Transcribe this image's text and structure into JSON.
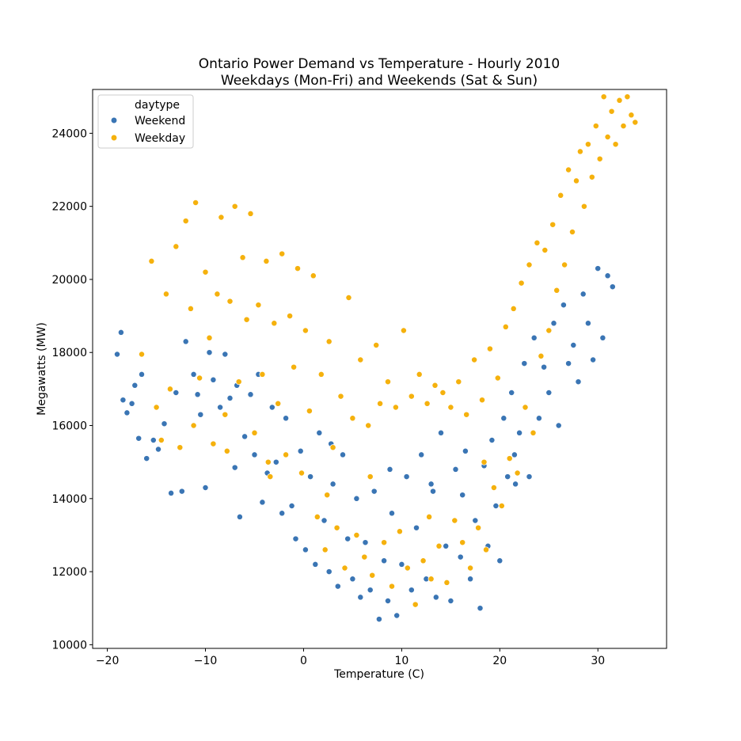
{
  "chart_data": {
    "type": "scatter",
    "title": "Ontario Power Demand vs Temperature - Hourly 2010",
    "subtitle": "Weekdays (Mon-Fri) and Weekends (Sat & Sun)",
    "xlabel": "Temperature (C)",
    "ylabel": "Megawatts (MW)",
    "xlim": [
      -21.5,
      37
    ],
    "ylim": [
      9900,
      25200
    ],
    "xticks": [
      -20,
      -10,
      0,
      10,
      20,
      30
    ],
    "yticks": [
      10000,
      12000,
      14000,
      16000,
      18000,
      20000,
      22000,
      24000
    ],
    "grid": false,
    "legend": {
      "title": "daytype",
      "placement": "top-left",
      "entries": [
        "Weekend",
        "Weekday"
      ]
    },
    "series": [
      {
        "name": "Weekend",
        "color": "#3a75b4",
        "points": [
          [
            -19,
            17950
          ],
          [
            -18.6,
            18550
          ],
          [
            -18.4,
            16700
          ],
          [
            -18,
            16350
          ],
          [
            -17.5,
            16600
          ],
          [
            -17.2,
            17100
          ],
          [
            -16.8,
            15650
          ],
          [
            -16.5,
            17400
          ],
          [
            -16,
            15100
          ],
          [
            -15.3,
            15600
          ],
          [
            -14.8,
            15350
          ],
          [
            -14.2,
            16050
          ],
          [
            -13.5,
            14150
          ],
          [
            -13,
            16900
          ],
          [
            -12.4,
            14200
          ],
          [
            -12,
            18300
          ],
          [
            -11.2,
            17400
          ],
          [
            -10.8,
            16850
          ],
          [
            -10.5,
            16300
          ],
          [
            -10,
            14300
          ],
          [
            -9.2,
            17250
          ],
          [
            -8.5,
            16500
          ],
          [
            -8,
            17950
          ],
          [
            -7.5,
            16750
          ],
          [
            -7,
            14850
          ],
          [
            -6.5,
            13500
          ],
          [
            -6,
            15700
          ],
          [
            -5.4,
            16850
          ],
          [
            -5,
            15200
          ],
          [
            -4.6,
            17400
          ],
          [
            -4.2,
            13900
          ],
          [
            -3.7,
            14700
          ],
          [
            -3.2,
            16500
          ],
          [
            -2.8,
            15000
          ],
          [
            -2.2,
            13600
          ],
          [
            -1.8,
            16200
          ],
          [
            -1.2,
            13800
          ],
          [
            -0.8,
            12900
          ],
          [
            -0.3,
            15300
          ],
          [
            0.2,
            12600
          ],
          [
            0.7,
            14600
          ],
          [
            1.2,
            12200
          ],
          [
            1.6,
            15800
          ],
          [
            2.1,
            13400
          ],
          [
            2.6,
            12000
          ],
          [
            3,
            14400
          ],
          [
            3.5,
            11600
          ],
          [
            4,
            15200
          ],
          [
            4.5,
            12900
          ],
          [
            5,
            11800
          ],
          [
            5.4,
            14000
          ],
          [
            5.8,
            11300
          ],
          [
            6.3,
            12800
          ],
          [
            6.8,
            11500
          ],
          [
            7.2,
            14200
          ],
          [
            7.7,
            10700
          ],
          [
            8.2,
            12300
          ],
          [
            8.6,
            11200
          ],
          [
            9,
            13600
          ],
          [
            9.5,
            10800
          ],
          [
            10,
            12200
          ],
          [
            10.5,
            14600
          ],
          [
            11,
            11500
          ],
          [
            11.5,
            13200
          ],
          [
            12,
            15200
          ],
          [
            12.5,
            11800
          ],
          [
            13,
            14400
          ],
          [
            13.5,
            11300
          ],
          [
            14,
            15800
          ],
          [
            14.5,
            12700
          ],
          [
            15,
            11200
          ],
          [
            15.5,
            14800
          ],
          [
            16,
            12400
          ],
          [
            16.5,
            15300
          ],
          [
            17,
            11800
          ],
          [
            17.5,
            13400
          ],
          [
            18,
            11000
          ],
          [
            18.4,
            14900
          ],
          [
            18.8,
            12700
          ],
          [
            19.2,
            15600
          ],
          [
            19.6,
            13800
          ],
          [
            20,
            12300
          ],
          [
            20.4,
            16200
          ],
          [
            20.8,
            14600
          ],
          [
            21.2,
            16900
          ],
          [
            21.6,
            14400
          ],
          [
            22,
            15800
          ],
          [
            22.5,
            17700
          ],
          [
            23,
            14600
          ],
          [
            23.5,
            18400
          ],
          [
            24,
            16200
          ],
          [
            24.5,
            17600
          ],
          [
            25,
            16900
          ],
          [
            25.5,
            18800
          ],
          [
            26,
            16000
          ],
          [
            26.5,
            19300
          ],
          [
            27,
            17700
          ],
          [
            27.5,
            18200
          ],
          [
            28,
            17200
          ],
          [
            28.5,
            19600
          ],
          [
            29,
            18800
          ],
          [
            29.5,
            17800
          ],
          [
            30,
            20300
          ],
          [
            30.5,
            18400
          ],
          [
            31,
            20100
          ],
          [
            31.5,
            19800
          ],
          [
            -9.6,
            18000
          ],
          [
            -6.8,
            17100
          ],
          [
            2.8,
            15500
          ],
          [
            8.8,
            14800
          ],
          [
            13.2,
            14200
          ],
          [
            16.2,
            14100
          ],
          [
            21.5,
            15200
          ]
        ]
      },
      {
        "name": "Weekday",
        "color": "#f5b10d",
        "points": [
          [
            -16.5,
            17950
          ],
          [
            -15.5,
            20500
          ],
          [
            -15,
            16500
          ],
          [
            -14.5,
            15600
          ],
          [
            -14,
            19600
          ],
          [
            -13.6,
            17000
          ],
          [
            -13,
            20900
          ],
          [
            -12.6,
            15400
          ],
          [
            -12,
            21600
          ],
          [
            -11.5,
            19200
          ],
          [
            -11.2,
            16000
          ],
          [
            -11,
            22100
          ],
          [
            -10.6,
            17300
          ],
          [
            -10,
            20200
          ],
          [
            -9.6,
            18400
          ],
          [
            -9.2,
            15500
          ],
          [
            -8.8,
            19600
          ],
          [
            -8.4,
            21700
          ],
          [
            -8,
            16300
          ],
          [
            -7.5,
            19400
          ],
          [
            -7,
            22000
          ],
          [
            -6.6,
            17200
          ],
          [
            -6.2,
            20600
          ],
          [
            -5.8,
            18900
          ],
          [
            -5.4,
            21800
          ],
          [
            -5,
            15800
          ],
          [
            -4.6,
            19300
          ],
          [
            -4.2,
            17400
          ],
          [
            -3.8,
            20500
          ],
          [
            -3.4,
            14600
          ],
          [
            -3,
            18800
          ],
          [
            -2.6,
            16600
          ],
          [
            -2.2,
            20700
          ],
          [
            -1.8,
            15200
          ],
          [
            -1.4,
            19000
          ],
          [
            -1,
            17600
          ],
          [
            -0.6,
            20300
          ],
          [
            -0.2,
            14700
          ],
          [
            0.2,
            18600
          ],
          [
            0.6,
            16400
          ],
          [
            1,
            20100
          ],
          [
            1.4,
            13500
          ],
          [
            1.8,
            17400
          ],
          [
            2.2,
            12600
          ],
          [
            2.6,
            18300
          ],
          [
            3,
            15400
          ],
          [
            3.4,
            13200
          ],
          [
            3.8,
            16800
          ],
          [
            4.2,
            12100
          ],
          [
            4.6,
            19500
          ],
          [
            5,
            16200
          ],
          [
            5.4,
            13000
          ],
          [
            5.8,
            17800
          ],
          [
            6.2,
            12400
          ],
          [
            6.6,
            16000
          ],
          [
            7,
            11900
          ],
          [
            7.4,
            18200
          ],
          [
            7.8,
            16600
          ],
          [
            8.2,
            12800
          ],
          [
            8.6,
            17200
          ],
          [
            9,
            11600
          ],
          [
            9.4,
            16500
          ],
          [
            9.8,
            13100
          ],
          [
            10.2,
            18600
          ],
          [
            10.6,
            12100
          ],
          [
            11,
            16800
          ],
          [
            11.4,
            11100
          ],
          [
            11.8,
            17400
          ],
          [
            12.2,
            12300
          ],
          [
            12.6,
            16600
          ],
          [
            13,
            11800
          ],
          [
            13.4,
            17100
          ],
          [
            13.8,
            12700
          ],
          [
            14.2,
            16900
          ],
          [
            14.6,
            11700
          ],
          [
            15,
            16500
          ],
          [
            15.4,
            13400
          ],
          [
            15.8,
            17200
          ],
          [
            16.2,
            12800
          ],
          [
            16.6,
            16300
          ],
          [
            17,
            12100
          ],
          [
            17.4,
            17800
          ],
          [
            17.8,
            13200
          ],
          [
            18.2,
            16700
          ],
          [
            18.6,
            12600
          ],
          [
            19,
            18100
          ],
          [
            19.4,
            14300
          ],
          [
            19.8,
            17300
          ],
          [
            20.2,
            13800
          ],
          [
            20.6,
            18700
          ],
          [
            21,
            15100
          ],
          [
            21.4,
            19200
          ],
          [
            21.8,
            14700
          ],
          [
            22.2,
            19900
          ],
          [
            22.6,
            16500
          ],
          [
            23,
            20400
          ],
          [
            23.4,
            15800
          ],
          [
            23.8,
            21000
          ],
          [
            24.2,
            17900
          ],
          [
            24.6,
            20800
          ],
          [
            25,
            18600
          ],
          [
            25.4,
            21500
          ],
          [
            25.8,
            19700
          ],
          [
            26.2,
            22300
          ],
          [
            26.6,
            20400
          ],
          [
            27,
            23000
          ],
          [
            27.4,
            21300
          ],
          [
            27.8,
            22700
          ],
          [
            28.2,
            23500
          ],
          [
            28.6,
            22000
          ],
          [
            29,
            23700
          ],
          [
            29.4,
            22800
          ],
          [
            29.8,
            24200
          ],
          [
            30.2,
            23300
          ],
          [
            30.6,
            25000
          ],
          [
            31,
            23900
          ],
          [
            31.4,
            24600
          ],
          [
            31.8,
            23700
          ],
          [
            32.2,
            24900
          ],
          [
            32.6,
            24200
          ],
          [
            33,
            25000
          ],
          [
            33.4,
            24500
          ],
          [
            33.8,
            24300
          ],
          [
            -7.8,
            15300
          ],
          [
            -3.6,
            15000
          ],
          [
            2.4,
            14100
          ],
          [
            6.8,
            14600
          ],
          [
            12.8,
            13500
          ],
          [
            18.4,
            15000
          ]
        ]
      }
    ]
  }
}
